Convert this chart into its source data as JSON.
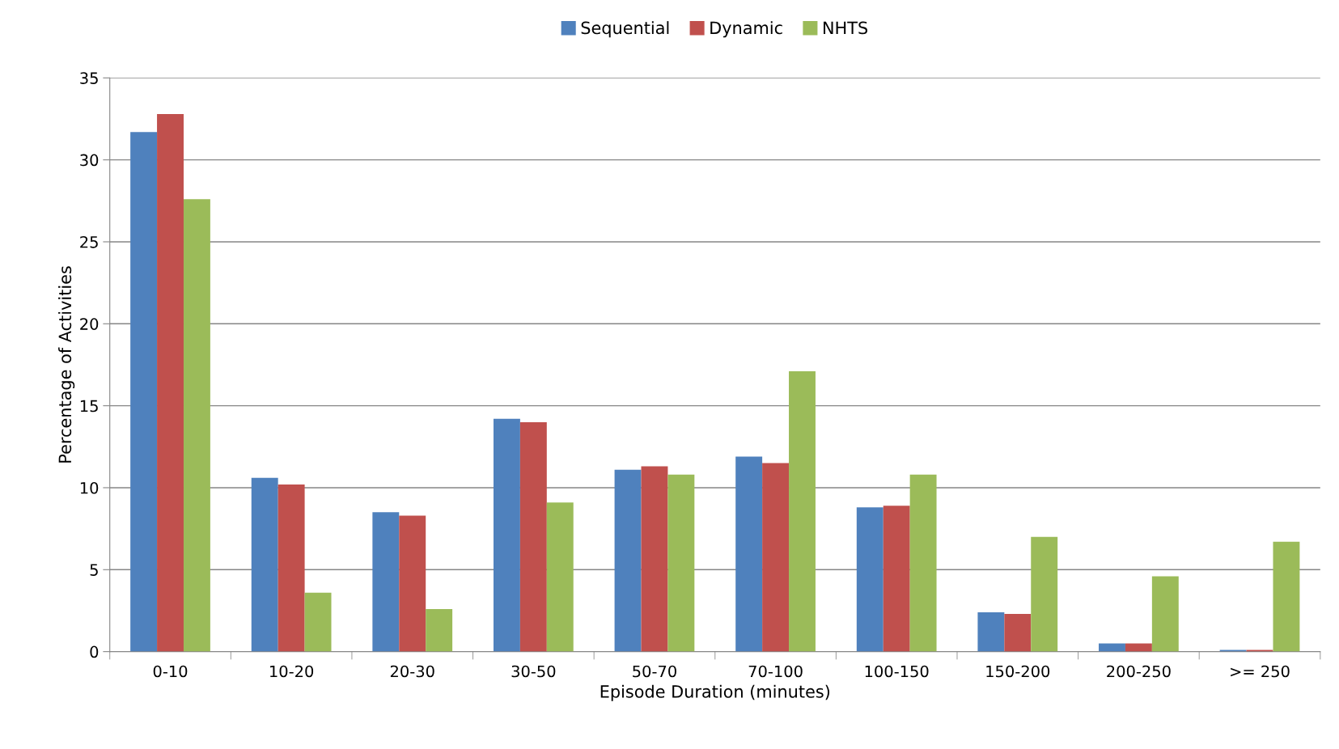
{
  "chart_data": {
    "type": "bar",
    "xlabel": "Episode Duration (minutes)",
    "ylabel": "Percentage of Activities",
    "categories": [
      "0-10",
      "10-20",
      "20-30",
      "30-50",
      "50-70",
      "70-100",
      "100-150",
      "150-200",
      "200-250",
      ">= 250"
    ],
    "series": [
      {
        "name": "Sequential",
        "color": "#4f81bd",
        "values": [
          31.7,
          10.6,
          8.5,
          14.2,
          11.1,
          11.9,
          8.8,
          2.4,
          0.5,
          0.1
        ]
      },
      {
        "name": "Dynamic",
        "color": "#c0504d",
        "values": [
          32.8,
          10.2,
          8.3,
          14.0,
          11.3,
          11.5,
          8.9,
          2.3,
          0.5,
          0.1
        ]
      },
      {
        "name": "NHTS",
        "color": "#9bbb59",
        "values": [
          27.6,
          3.6,
          2.6,
          9.1,
          10.8,
          17.1,
          10.8,
          7.0,
          4.6,
          6.7
        ]
      }
    ],
    "ylim": [
      0,
      35
    ],
    "yticks": [
      0,
      5,
      10,
      15,
      20,
      25,
      30,
      35
    ],
    "grid": "y",
    "legend": "top"
  }
}
